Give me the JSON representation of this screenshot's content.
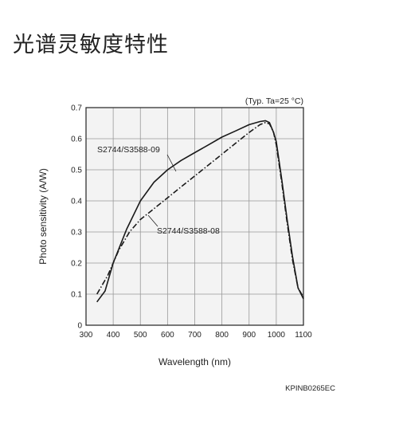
{
  "page": {
    "title": "光谱灵敏度特性"
  },
  "chart_data": {
    "type": "line",
    "condition": "(Typ. Ta=25 °C)",
    "xlabel": "Wavelength (nm)",
    "ylabel": "Photo sensitivity (A/W)",
    "xlim": [
      300,
      1100
    ],
    "ylim": [
      0,
      0.7
    ],
    "xticks": [
      300,
      400,
      500,
      600,
      700,
      800,
      900,
      1000,
      1100
    ],
    "yticks": [
      0,
      0.1,
      0.2,
      0.3,
      0.4,
      0.5,
      0.6,
      0.7
    ],
    "ytick_labels": [
      "0",
      "0.1",
      "0.2",
      "0.3",
      "0.4",
      "0.5",
      "0.6",
      "0.7"
    ],
    "grid": true,
    "series": [
      {
        "name": "S2744/S3588-09",
        "style": "solid",
        "x": [
          340,
          370,
          400,
          450,
          500,
          550,
          600,
          650,
          700,
          750,
          800,
          850,
          900,
          940,
          960,
          975,
          990,
          1000,
          1020,
          1040,
          1060,
          1080,
          1100
        ],
        "y": [
          0.075,
          0.11,
          0.2,
          0.31,
          0.4,
          0.46,
          0.5,
          0.53,
          0.555,
          0.58,
          0.605,
          0.625,
          0.645,
          0.655,
          0.658,
          0.652,
          0.62,
          0.59,
          0.47,
          0.34,
          0.22,
          0.12,
          0.085
        ]
      },
      {
        "name": "S2744/S3588-08",
        "style": "dash-dot",
        "x": [
          340,
          380,
          420,
          460,
          500,
          550,
          600,
          650,
          700,
          750,
          800,
          850,
          900,
          940,
          960,
          975,
          990,
          1000,
          1020,
          1040,
          1060,
          1080,
          1100
        ],
        "y": [
          0.1,
          0.16,
          0.24,
          0.3,
          0.34,
          0.375,
          0.41,
          0.445,
          0.48,
          0.515,
          0.55,
          0.585,
          0.62,
          0.645,
          0.652,
          0.648,
          0.62,
          0.58,
          0.46,
          0.33,
          0.21,
          0.12,
          0.09
        ]
      }
    ],
    "annotations": [
      {
        "text": "S2744/S3588-09",
        "series": 0
      },
      {
        "text": "S2744/S3588-08",
        "series": 1
      }
    ],
    "figure_code": "KPINB0265EC"
  }
}
